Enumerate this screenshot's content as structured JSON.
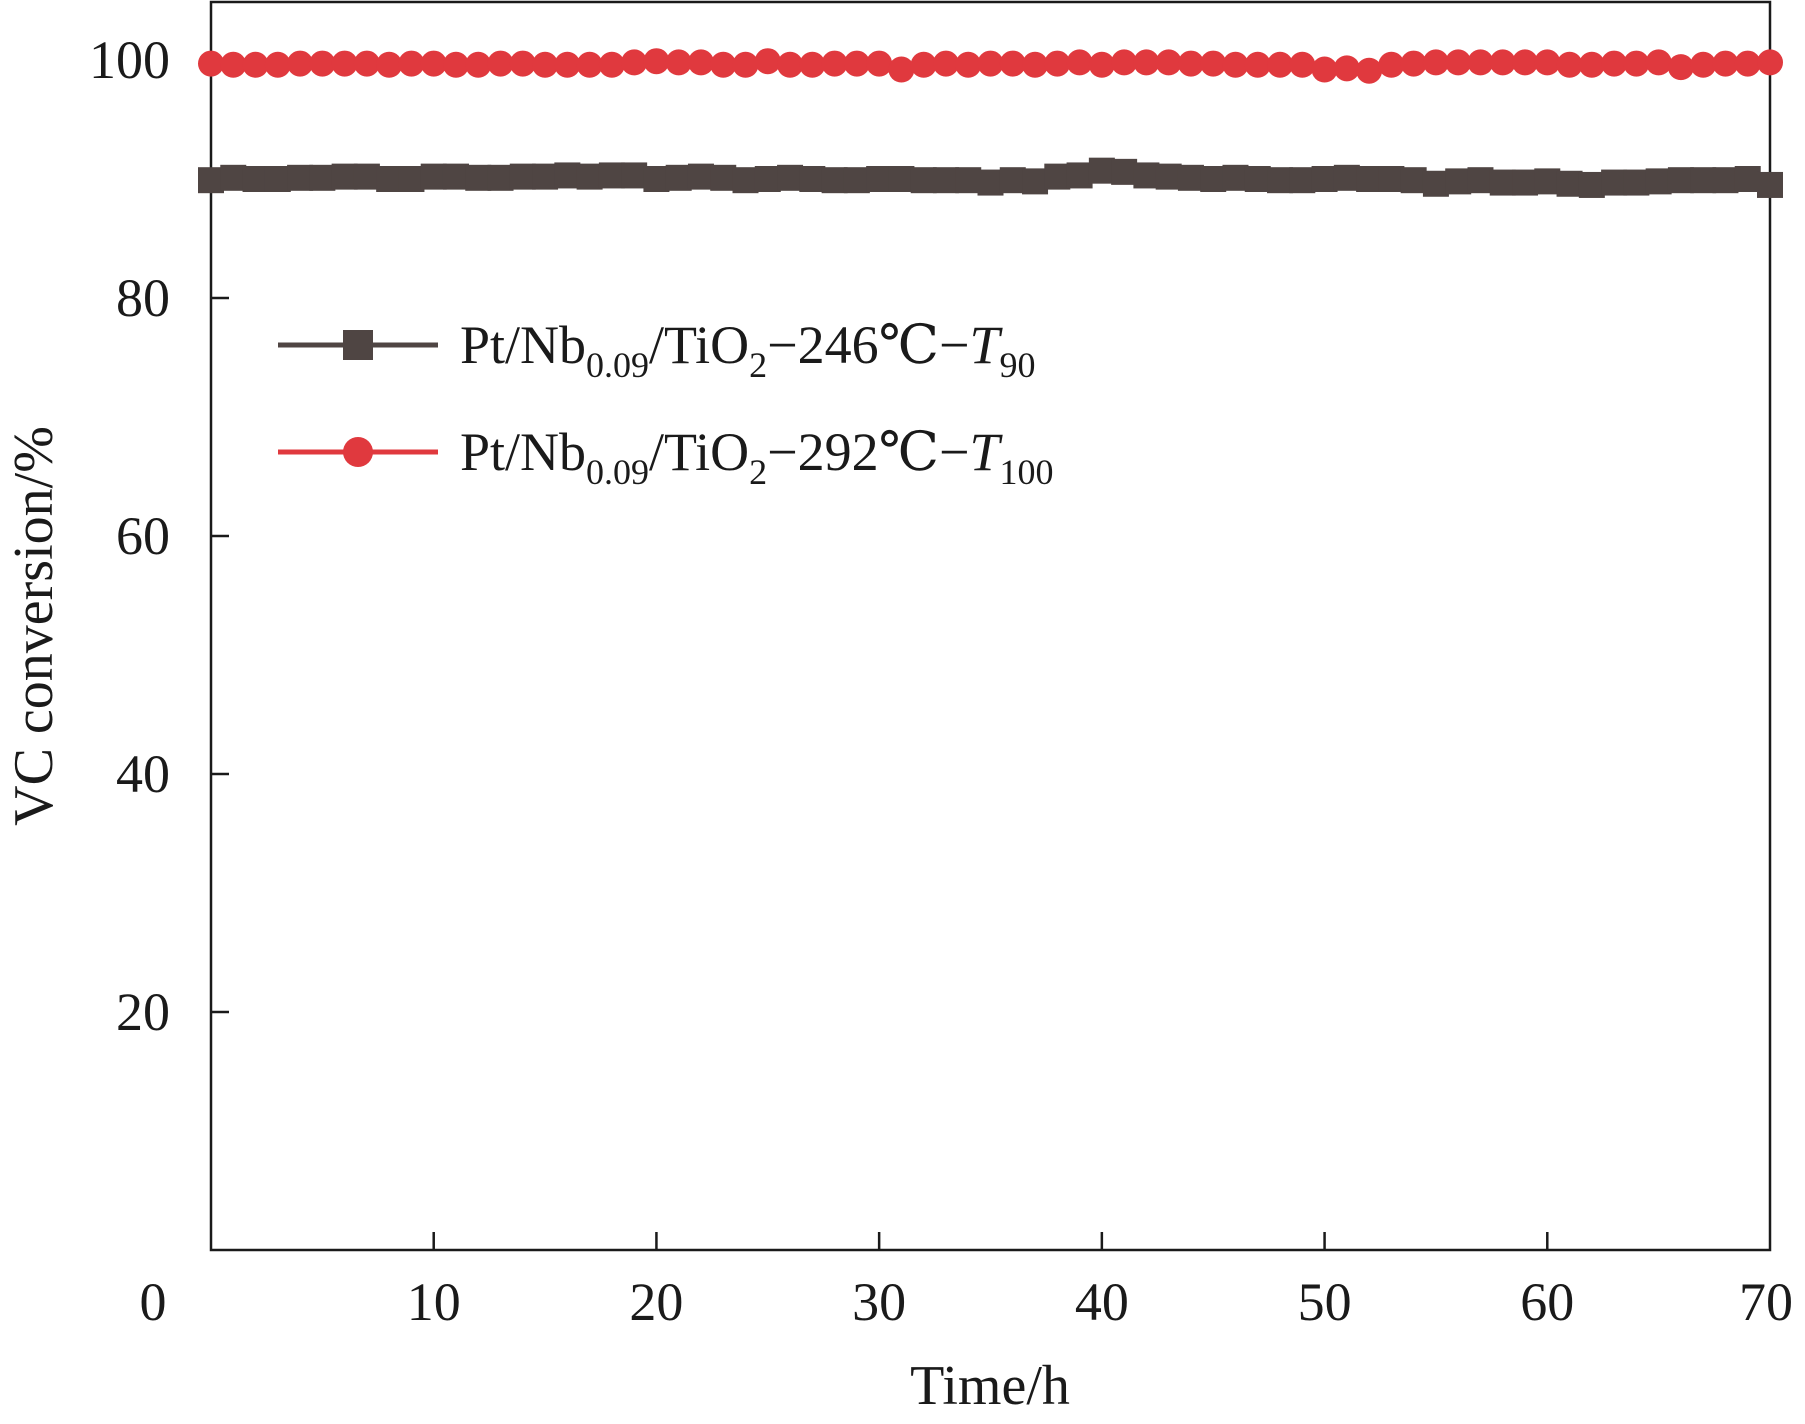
{
  "chart_data": {
    "type": "line",
    "title": "",
    "xlabel": "Time/h",
    "ylabel": "VC conversion/%",
    "xlim": [
      0,
      70
    ],
    "ylim": [
      0,
      104
    ],
    "xticks": [
      0,
      10,
      20,
      30,
      40,
      50,
      60,
      70
    ],
    "yticks": [
      20,
      40,
      60,
      80,
      100
    ],
    "grid": false,
    "legend_position": "upper-left",
    "series": [
      {
        "name": "Pt/Nb0.09/TiO2−246℃−T90",
        "legend": {
          "main": "Pt/Nb",
          "sub1": "0.09",
          "mid": "/TiO",
          "sub2": "2",
          "tail": "−246℃−",
          "var": "T",
          "sub3": "90"
        },
        "color": "#4f4543",
        "marker": "square",
        "x": [
          0,
          1,
          2,
          3,
          4,
          5,
          6,
          7,
          8,
          9,
          10,
          11,
          12,
          13,
          14,
          15,
          16,
          17,
          18,
          19,
          20,
          21,
          22,
          23,
          24,
          25,
          26,
          27,
          28,
          29,
          30,
          31,
          32,
          33,
          34,
          35,
          36,
          37,
          38,
          39,
          40,
          41,
          42,
          43,
          44,
          45,
          46,
          47,
          48,
          49,
          50,
          51,
          52,
          53,
          54,
          55,
          56,
          57,
          58,
          59,
          60,
          61,
          62,
          63,
          64,
          65,
          66,
          67,
          68,
          69,
          70
        ],
        "values": [
          89.9,
          90.1,
          90.0,
          90.0,
          90.1,
          90.1,
          90.2,
          90.2,
          90.0,
          90.0,
          90.2,
          90.2,
          90.1,
          90.1,
          90.2,
          90.2,
          90.3,
          90.2,
          90.3,
          90.3,
          90.0,
          90.1,
          90.2,
          90.1,
          89.9,
          90.0,
          90.1,
          90.0,
          89.9,
          89.9,
          90.0,
          90.0,
          89.9,
          89.9,
          89.9,
          89.7,
          89.9,
          89.8,
          90.2,
          90.3,
          90.7,
          90.6,
          90.3,
          90.2,
          90.1,
          90.0,
          90.1,
          90.0,
          89.9,
          89.9,
          90.0,
          90.1,
          90.0,
          90.0,
          89.9,
          89.6,
          89.8,
          89.9,
          89.7,
          89.7,
          89.8,
          89.6,
          89.5,
          89.7,
          89.7,
          89.8,
          89.9,
          89.9,
          89.9,
          90.0,
          89.5
        ]
      },
      {
        "name": "Pt/Nb0.09/TiO2−292℃−T100",
        "legend": {
          "main": "Pt/Nb",
          "sub1": "0.09",
          "mid": "/TiO",
          "sub2": "2",
          "tail": "−292℃−",
          "var": "T",
          "sub3": "100"
        },
        "color": "#e0393e",
        "marker": "circle",
        "x": [
          0,
          1,
          2,
          3,
          4,
          5,
          6,
          7,
          8,
          9,
          10,
          11,
          12,
          13,
          14,
          15,
          16,
          17,
          18,
          19,
          20,
          21,
          22,
          23,
          24,
          25,
          26,
          27,
          28,
          29,
          30,
          31,
          32,
          33,
          34,
          35,
          36,
          37,
          38,
          39,
          40,
          41,
          42,
          43,
          44,
          45,
          46,
          47,
          48,
          49,
          50,
          51,
          52,
          53,
          54,
          55,
          56,
          57,
          58,
          59,
          60,
          61,
          62,
          63,
          64,
          65,
          66,
          67,
          68,
          69,
          70
        ],
        "values": [
          99.7,
          99.6,
          99.6,
          99.6,
          99.7,
          99.7,
          99.7,
          99.7,
          99.6,
          99.7,
          99.7,
          99.6,
          99.6,
          99.7,
          99.7,
          99.6,
          99.6,
          99.6,
          99.6,
          99.8,
          99.9,
          99.8,
          99.8,
          99.6,
          99.6,
          99.9,
          99.6,
          99.6,
          99.7,
          99.7,
          99.7,
          99.2,
          99.6,
          99.7,
          99.6,
          99.7,
          99.7,
          99.6,
          99.7,
          99.8,
          99.6,
          99.8,
          99.8,
          99.8,
          99.7,
          99.7,
          99.6,
          99.6,
          99.6,
          99.6,
          99.2,
          99.3,
          99.1,
          99.6,
          99.7,
          99.8,
          99.8,
          99.8,
          99.8,
          99.8,
          99.8,
          99.6,
          99.6,
          99.7,
          99.7,
          99.8,
          99.4,
          99.6,
          99.7,
          99.7,
          99.8
        ]
      }
    ]
  }
}
